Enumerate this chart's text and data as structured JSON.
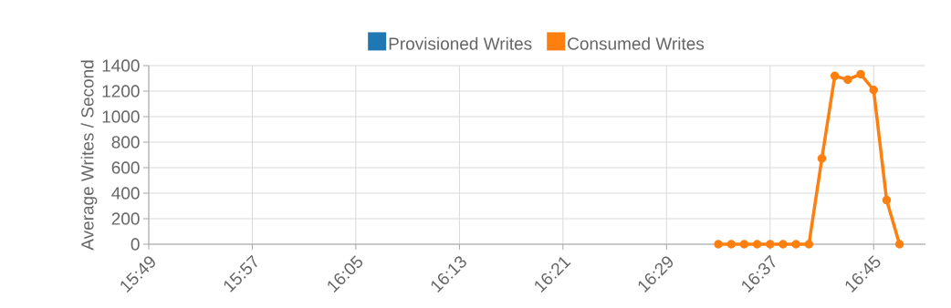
{
  "chart_data": {
    "type": "line",
    "ylabel": "Average Writes / Second",
    "x": [
      16.55,
      16.5667,
      16.5833,
      16.6,
      16.6167,
      16.6333,
      16.65,
      16.6667,
      16.6833,
      16.7,
      16.7167,
      16.7333,
      16.75,
      16.7667,
      16.7833
    ],
    "series": [
      {
        "name": "Provisioned Writes",
        "color": "#1f77b4",
        "values": [
          null,
          null,
          null,
          null,
          null,
          null,
          null,
          null,
          null,
          null,
          null,
          null,
          null,
          null,
          null
        ]
      },
      {
        "name": "Consumed Writes",
        "color": "#ff7f0e",
        "values": [
          0,
          0,
          0,
          0,
          0,
          0,
          0,
          0,
          672,
          1319,
          1290,
          1333,
          1209,
          346,
          0
        ]
      }
    ],
    "xlim": [
      15.8167,
      16.8167
    ],
    "xticks": [
      {
        "value": 15.8167,
        "label": "15:49"
      },
      {
        "value": 15.95,
        "label": "15:57"
      },
      {
        "value": 16.0833,
        "label": "16:05"
      },
      {
        "value": 16.2167,
        "label": "16:13"
      },
      {
        "value": 16.35,
        "label": "16:21"
      },
      {
        "value": 16.4833,
        "label": "16:29"
      },
      {
        "value": 16.6167,
        "label": "16:37"
      },
      {
        "value": 16.75,
        "label": "16:45"
      }
    ],
    "ylim": [
      0,
      1400
    ],
    "yticks": [
      0,
      200,
      400,
      600,
      800,
      1000,
      1200,
      1400
    ],
    "grid": true,
    "legend": "top",
    "marker": "circle",
    "line_style": "solid"
  }
}
